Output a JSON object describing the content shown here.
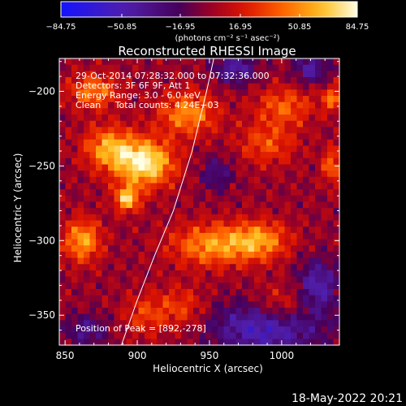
{
  "chart_data": {
    "type": "heatmap",
    "title": "Reconstructed RHESSI Image",
    "xlabel": "Heliocentric X (arcsec)",
    "ylabel": "Heliocentric Y (arcsec)",
    "xlim": [
      846,
      1040
    ],
    "ylim": [
      -370,
      -178
    ],
    "x_ticks": [
      850,
      900,
      950,
      1000
    ],
    "y_ticks": [
      -200,
      -250,
      -300,
      -350
    ],
    "x_tick_labels": [
      "850",
      "900",
      "950",
      "1000"
    ],
    "y_tick_labels": [
      "−200",
      "−250",
      "−300",
      "−350"
    ],
    "colorbar": {
      "min": -84.75,
      "max": 84.75,
      "tick_labels": [
        "−84.75",
        "−50.85",
        "−16.95",
        "16.95",
        "50.85",
        "84.75"
      ],
      "tick_values": [
        -84.75,
        -50.85,
        -16.95,
        16.95,
        50.85,
        84.75
      ],
      "unit_label": "(photons cm⁻² s⁻¹ asec⁻²)"
    },
    "info_lines": [
      "29-Oct-2014 07:28:32.000 to 07:32:36.000",
      "Detectors: 3F 6F 9F, Att 1",
      "Energy Range: 3.0 - 6.0 keV",
      "Clean     Total counts: 4.24E+03"
    ],
    "peak_label": "Position of Peak = [892,-278]",
    "peak": [
      892,
      -278
    ],
    "sources": [
      {
        "x": 905,
        "y": -248,
        "amp": 84,
        "sx": 14,
        "sy": 11
      },
      {
        "x": 893,
        "y": -272,
        "amp": 68,
        "sx": 6,
        "sy": 6
      },
      {
        "x": 880,
        "y": -238,
        "amp": 55,
        "sx": 12,
        "sy": 10
      },
      {
        "x": 935,
        "y": -215,
        "amp": 52,
        "sx": 14,
        "sy": 10
      },
      {
        "x": 862,
        "y": -300,
        "amp": 58,
        "sx": 9,
        "sy": 10
      },
      {
        "x": 952,
        "y": -303,
        "amp": 54,
        "sx": 20,
        "sy": 10
      },
      {
        "x": 985,
        "y": -300,
        "amp": 50,
        "sx": 14,
        "sy": 9
      },
      {
        "x": 870,
        "y": -200,
        "amp": 48,
        "sx": 12,
        "sy": 8
      },
      {
        "x": 1002,
        "y": -210,
        "amp": 38,
        "sx": 14,
        "sy": 9
      },
      {
        "x": 990,
        "y": -235,
        "amp": 34,
        "sx": 14,
        "sy": 10
      },
      {
        "x": 1035,
        "y": -250,
        "amp": 42,
        "sx": 5,
        "sy": 8
      },
      {
        "x": 1035,
        "y": -205,
        "amp": 42,
        "sx": 5,
        "sy": 6
      },
      {
        "x": 930,
        "y": -345,
        "amp": 30,
        "sx": 12,
        "sy": 10
      },
      {
        "x": 905,
        "y": -350,
        "amp": 28,
        "sx": 10,
        "sy": 10
      },
      {
        "x": 1000,
        "y": -345,
        "amp": 35,
        "sx": 14,
        "sy": 10
      },
      {
        "x": 990,
        "y": -358,
        "amp": -60,
        "sx": 26,
        "sy": 12
      },
      {
        "x": 1025,
        "y": -330,
        "amp": -48,
        "sx": 10,
        "sy": 12
      },
      {
        "x": 968,
        "y": -185,
        "amp": -45,
        "sx": 10,
        "sy": 7
      },
      {
        "x": 1020,
        "y": -185,
        "amp": -42,
        "sx": 8,
        "sy": 7
      },
      {
        "x": 955,
        "y": -255,
        "amp": -30,
        "sx": 8,
        "sy": 8
      },
      {
        "x": 865,
        "y": -360,
        "amp": -35,
        "sx": 10,
        "sy": 7
      }
    ],
    "limb_curve": [
      [
        889,
        -370
      ],
      [
        900,
        -340
      ],
      [
        912,
        -310
      ],
      [
        925,
        -280
      ],
      [
        938,
        -240
      ],
      [
        948,
        -200
      ],
      [
        953,
        -178
      ]
    ]
  },
  "footer": {
    "date_label": "18-May-2022 20:21"
  }
}
